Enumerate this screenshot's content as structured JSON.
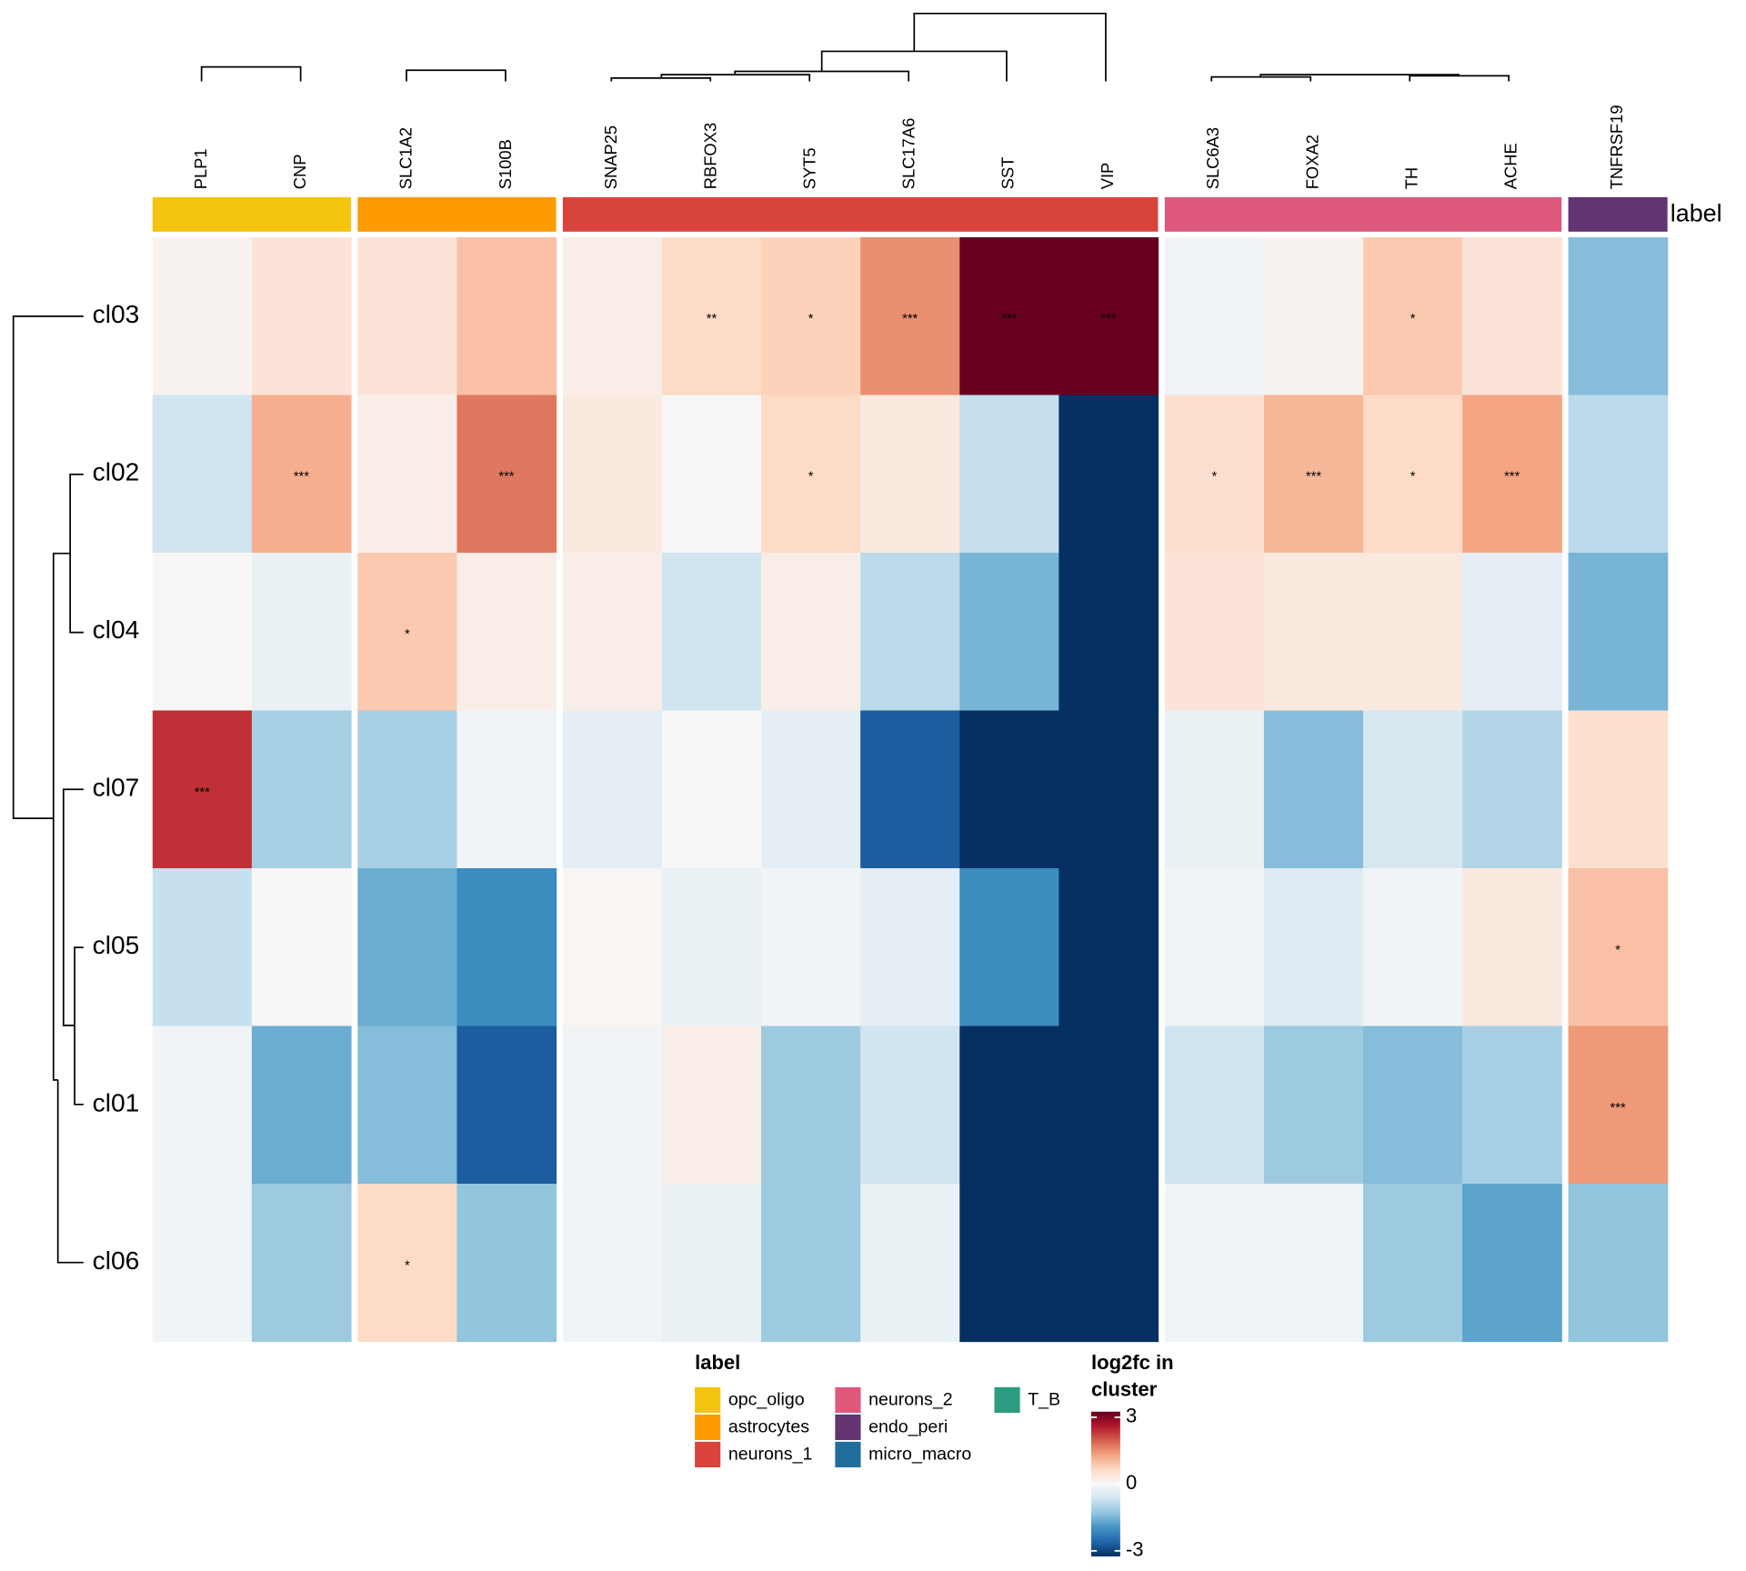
{
  "chart_data": {
    "type": "heatmap",
    "rows": [
      "cl03",
      "cl02",
      "cl04",
      "cl07",
      "cl05",
      "cl01",
      "cl06"
    ],
    "column_groups": [
      {
        "name": "opc_oligo",
        "color": "#f4c40f",
        "columns": [
          "PLP1",
          "CNP"
        ]
      },
      {
        "name": "astrocytes",
        "color": "#fe9b00",
        "columns": [
          "SLC1A2",
          "S100B"
        ]
      },
      {
        "name": "neurons_1",
        "color": "#d8443c",
        "columns": [
          "SNAP25",
          "RBFOX3",
          "SYT5",
          "SLC17A6",
          "SST",
          "VIP"
        ]
      },
      {
        "name": "neurons_2",
        "color": "#de597c",
        "columns": [
          "SLC6A3",
          "FOXA2",
          "TH",
          "ACHE"
        ]
      },
      {
        "name": "endo_peri",
        "color": "#633372",
        "columns": [
          "TNFRSF19"
        ]
      },
      {
        "name": "micro_macro",
        "color": "#1f6e9c",
        "columns": []
      },
      {
        "name": "T_B",
        "color": "#2b9b81",
        "columns": []
      }
    ],
    "annotation_name": "label",
    "legend_title": "label",
    "values": [
      [
        0.1,
        0.4,
        0.4,
        0.9,
        0.2,
        0.6,
        0.7,
        1.4,
        3,
        3,
        -0.1,
        0.1,
        0.8,
        0.4,
        -1.3
      ],
      [
        -0.6,
        1.1,
        0.2,
        1.6,
        0.3,
        0,
        0.6,
        0.3,
        -0.7,
        -3,
        0.5,
        1.0,
        0.6,
        1.2,
        -0.8
      ],
      [
        0,
        -0.2,
        0.8,
        0.2,
        0.2,
        -0.6,
        0.2,
        -0.8,
        -1.4,
        -3,
        0.4,
        0.3,
        0.3,
        -0.3,
        -1.4
      ],
      [
        2.2,
        -1.0,
        -1.0,
        -0.1,
        -0.3,
        0,
        -0.3,
        -2.5,
        -3,
        -3,
        -0.2,
        -1.3,
        -0.5,
        -0.9,
        0.5
      ],
      [
        -0.7,
        0,
        -1.5,
        -1.9,
        0.05,
        -0.2,
        -0.1,
        -0.3,
        -1.9,
        -3,
        -0.1,
        -0.4,
        -0.1,
        0.3,
        0.9
      ],
      [
        -0.1,
        -1.5,
        -1.3,
        -2.5,
        -0.1,
        0.2,
        -1.1,
        -0.6,
        -3,
        -3,
        -0.6,
        -1.1,
        -1.3,
        -1.0,
        1.3
      ],
      [
        -0.1,
        -1.1,
        0.6,
        -1.2,
        -0.1,
        -0.2,
        -1.1,
        -0.2,
        -3,
        -3,
        -0.1,
        -0.1,
        -1.1,
        -1.6,
        -1.2
      ]
    ],
    "annotations": [
      [
        null,
        null,
        null,
        null,
        null,
        "**",
        "*",
        "***",
        "***",
        "***",
        null,
        null,
        "*",
        null,
        null
      ],
      [
        null,
        "***",
        null,
        "***",
        null,
        null,
        "*",
        null,
        null,
        null,
        "*",
        "***",
        "*",
        "***",
        null
      ],
      [
        null,
        null,
        "*",
        null,
        null,
        null,
        null,
        null,
        null,
        null,
        null,
        null,
        null,
        null,
        null
      ],
      [
        "***",
        null,
        null,
        null,
        null,
        null,
        null,
        null,
        null,
        null,
        null,
        null,
        null,
        null,
        null
      ],
      [
        null,
        null,
        null,
        null,
        null,
        null,
        null,
        null,
        null,
        null,
        null,
        null,
        null,
        null,
        "*"
      ],
      [
        null,
        null,
        null,
        null,
        null,
        null,
        null,
        null,
        null,
        null,
        null,
        null,
        null,
        null,
        "***"
      ],
      [
        null,
        null,
        "*",
        null,
        null,
        null,
        null,
        null,
        null,
        null,
        null,
        null,
        null,
        null,
        null
      ]
    ],
    "colorbar_title": [
      "log2fc in",
      "cluster"
    ],
    "clim": [
      -3,
      3
    ],
    "colorbar_ticks": [
      -3,
      0,
      3
    ],
    "colorscale": [
      "#053061",
      "#2166ac",
      "#4393c3",
      "#92c5de",
      "#d1e5f0",
      "#f7f7f7",
      "#fddbc7",
      "#f4a582",
      "#d6604d",
      "#b2182b",
      "#67001f"
    ]
  }
}
